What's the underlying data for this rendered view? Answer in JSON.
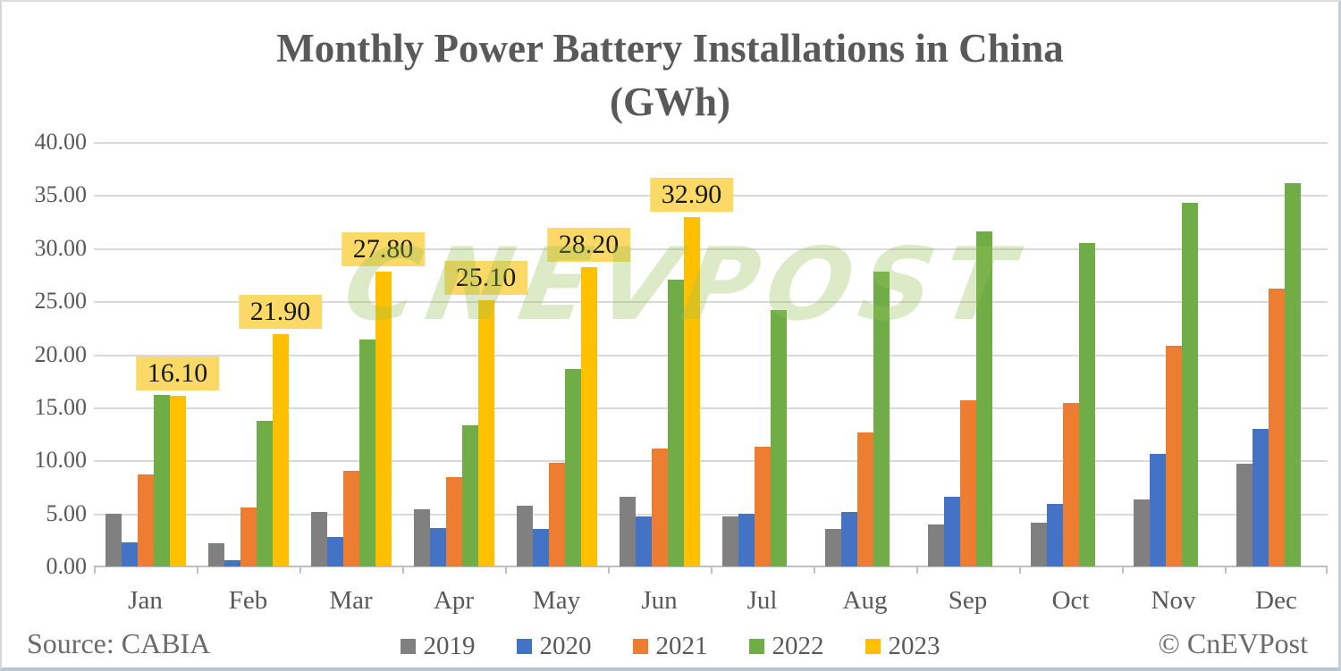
{
  "title": {
    "line1": "Monthly Power Battery Installations in China",
    "line2": "(GWh)"
  },
  "footer": {
    "source": "Source: CABIA",
    "copyright": "© CnEVPost"
  },
  "watermark": {
    "text": "CNEVPOST"
  },
  "colors": {
    "title_text": "#595959",
    "axis_text": "#595959",
    "gridline": "#d9d9d9",
    "data_label_bg": "#FBD966",
    "watermark_green": "#96C054"
  },
  "chart_data": {
    "type": "bar",
    "title": "Monthly Power Battery Installations in China (GWh)",
    "xlabel": "",
    "ylabel": "",
    "ylim": [
      0,
      40
    ],
    "y_tick_step": 5,
    "y_ticks": [
      "40.00",
      "35.00",
      "30.00",
      "25.00",
      "20.00",
      "15.00",
      "10.00",
      "5.00",
      "0.00"
    ],
    "grid": true,
    "legend_position": "bottom",
    "categories": [
      "Jan",
      "Feb",
      "Mar",
      "Apr",
      "May",
      "Jun",
      "Jul",
      "Aug",
      "Sep",
      "Oct",
      "Nov",
      "Dec"
    ],
    "series": [
      {
        "name": "2019",
        "color": "#808080",
        "values": [
          5.0,
          2.2,
          5.1,
          5.4,
          5.7,
          6.6,
          4.7,
          3.5,
          4.0,
          4.1,
          6.3,
          9.7
        ]
      },
      {
        "name": "2020",
        "color": "#4472C4",
        "values": [
          2.3,
          0.6,
          2.8,
          3.6,
          3.5,
          4.7,
          5.0,
          5.1,
          6.6,
          5.9,
          10.6,
          13.0
        ]
      },
      {
        "name": "2021",
        "color": "#ED7D31",
        "values": [
          8.7,
          5.6,
          9.0,
          8.4,
          9.8,
          11.1,
          11.3,
          12.6,
          15.7,
          15.4,
          20.8,
          26.2
        ]
      },
      {
        "name": "2022",
        "color": "#70AD47",
        "values": [
          16.2,
          13.7,
          21.4,
          13.3,
          18.6,
          27.0,
          24.2,
          27.8,
          31.6,
          30.5,
          34.3,
          36.1
        ]
      },
      {
        "name": "2023",
        "color": "#FFC000",
        "values": [
          16.1,
          21.9,
          27.8,
          25.1,
          28.2,
          32.9,
          null,
          null,
          null,
          null,
          null,
          null
        ],
        "data_labels": [
          "16.10",
          "21.90",
          "27.80",
          "25.10",
          "28.20",
          "32.90",
          null,
          null,
          null,
          null,
          null,
          null
        ]
      }
    ]
  }
}
